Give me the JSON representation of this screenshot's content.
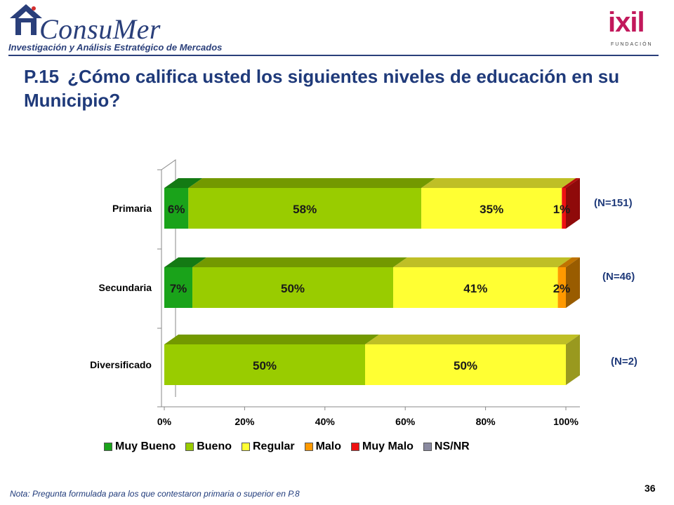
{
  "header": {
    "left_logo_text": "ConsuMer",
    "left_logo_tagline": "Investigación y Análisis Estratégico de Mercados",
    "right_logo_text": "ixil",
    "right_logo_sub": "FUNDACIÓN"
  },
  "title": {
    "number": "P.15",
    "text": "¿Cómo califica usted los siguientes niveles de educación en su Municipio?"
  },
  "chart_data": {
    "type": "bar",
    "orientation": "horizontal",
    "stacked": "percent",
    "categories": [
      "Primaria",
      "Secundaria",
      "Diversificado"
    ],
    "series": [
      {
        "name": "Muy Bueno",
        "color": "#1aa31a",
        "values": [
          6,
          7,
          0
        ]
      },
      {
        "name": "Bueno",
        "color": "#99cc00",
        "values": [
          58,
          50,
          50
        ]
      },
      {
        "name": "Regular",
        "color": "#ffff33",
        "values": [
          35,
          41,
          50
        ]
      },
      {
        "name": "Malo",
        "color": "#ff9900",
        "values": [
          0,
          2,
          0
        ]
      },
      {
        "name": "Muy Malo",
        "color": "#ee1111",
        "values": [
          1,
          0,
          0
        ]
      },
      {
        "name": "NS/NR",
        "color": "#8a8aa0",
        "values": [
          0,
          0,
          0
        ]
      }
    ],
    "data_labels": [
      [
        "6%",
        "58%",
        "35%",
        "",
        "1%",
        ""
      ],
      [
        "7%",
        "50%",
        "41%",
        "2%",
        "",
        ""
      ],
      [
        "",
        "50%",
        "50%",
        "",
        "",
        ""
      ]
    ],
    "n_labels": [
      "(N=151)",
      "(N=46)",
      "(N=2)"
    ],
    "x_ticks": [
      "0%",
      "20%",
      "40%",
      "60%",
      "80%",
      "100%"
    ],
    "xlim": [
      0,
      100
    ],
    "legend": "bottom"
  },
  "note": "Nota: Pregunta formulada para los que contestaron primaria o superior en P.8",
  "page_number": "36"
}
